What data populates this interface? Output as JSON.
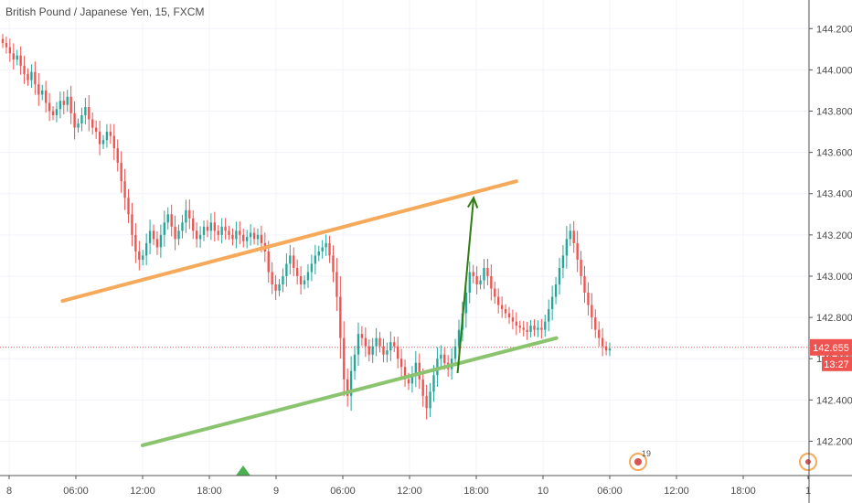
{
  "header": {
    "symbol_title": "British Pound / Japanese Yen, 15, FXCM"
  },
  "colors": {
    "up": "#26a69a",
    "down": "#ef5350",
    "grid": "#f0f3fa",
    "axis_text": "#4a4a4a",
    "channel_upper": "#f5a95b",
    "channel_lower": "#8bc46e",
    "projection_arrow": "#2e7d12",
    "price_label_bg": "#ef5350",
    "current_price_line": "#ef5350"
  },
  "chart_data": {
    "type": "candlestick",
    "y_axis": {
      "ylim": [
        142.1,
        144.25
      ],
      "ticks": [
        "144.200",
        "144.000",
        "143.800",
        "143.600",
        "143.400",
        "143.200",
        "143.000",
        "142.800",
        "142.600",
        "142.400",
        "142.200"
      ]
    },
    "x_axis": {
      "ticks": [
        "8",
        "06:00",
        "12:00",
        "18:00",
        "9",
        "06:00",
        "12:00",
        "18:00",
        "10",
        "06:00",
        "12:00",
        "18:00",
        "1"
      ]
    },
    "current_price": {
      "value": "142.655",
      "countdown": "13:27"
    },
    "candles_close": [
      144.13,
      144.11,
      144.08,
      144.05,
      144.07,
      144.02,
      143.98,
      143.95,
      143.99,
      143.93,
      143.88,
      143.9,
      143.84,
      143.8,
      143.78,
      143.81,
      143.85,
      143.83,
      143.87,
      143.79,
      143.72,
      143.74,
      143.78,
      143.82,
      143.76,
      143.72,
      143.7,
      143.64,
      143.66,
      143.7,
      143.68,
      143.62,
      143.55,
      143.46,
      143.38,
      143.3,
      143.2,
      143.12,
      143.08,
      143.1,
      143.16,
      143.22,
      143.18,
      143.14,
      143.2,
      143.26,
      143.3,
      143.24,
      143.18,
      143.22,
      143.26,
      143.32,
      143.28,
      143.22,
      143.18,
      143.2,
      143.24,
      143.22,
      143.26,
      143.22,
      143.2,
      143.24,
      143.22,
      143.2,
      143.18,
      143.22,
      143.2,
      143.17,
      143.19,
      143.21,
      143.18,
      143.2,
      143.16,
      143.12,
      143.02,
      142.96,
      142.93,
      142.96,
      143.0,
      143.06,
      143.1,
      143.04,
      143.0,
      142.96,
      142.98,
      143.02,
      143.06,
      143.1,
      143.12,
      143.14,
      143.16,
      143.1,
      143.02,
      142.9,
      142.7,
      142.5,
      142.42,
      142.54,
      142.62,
      142.72,
      142.7,
      142.66,
      142.62,
      142.66,
      142.7,
      142.66,
      142.62,
      142.64,
      142.68,
      142.66,
      142.6,
      142.56,
      142.5,
      142.48,
      142.52,
      142.58,
      142.5,
      142.42,
      142.36,
      142.44,
      142.52,
      142.6,
      142.62,
      142.58,
      142.55,
      142.6,
      142.66,
      142.74,
      142.82,
      142.92,
      143.02,
      143.0,
      142.96,
      142.98,
      143.04,
      143.0,
      142.94,
      142.9,
      142.86,
      142.84,
      142.82,
      142.8,
      142.78,
      142.76,
      142.75,
      142.74,
      142.73,
      142.76,
      142.74,
      142.75,
      142.74,
      142.78,
      142.84,
      142.9,
      142.96,
      143.04,
      143.1,
      143.18,
      143.22,
      143.16,
      143.08,
      143.0,
      142.92,
      142.86,
      142.8,
      142.74,
      142.7,
      142.66,
      142.64,
      142.65
    ]
  },
  "drawings": {
    "upper_channel": {
      "x": [
        0.2,
        1.9
      ],
      "y": [
        142.88,
        143.46
      ]
    },
    "lower_channel": {
      "x": [
        0.5,
        2.05
      ],
      "y": [
        142.18,
        142.7
      ]
    },
    "projection_arrow": {
      "x": [
        1.68,
        1.74
      ],
      "y": [
        142.53,
        143.38
      ]
    }
  },
  "markers": {
    "event_badge_count": "19"
  }
}
